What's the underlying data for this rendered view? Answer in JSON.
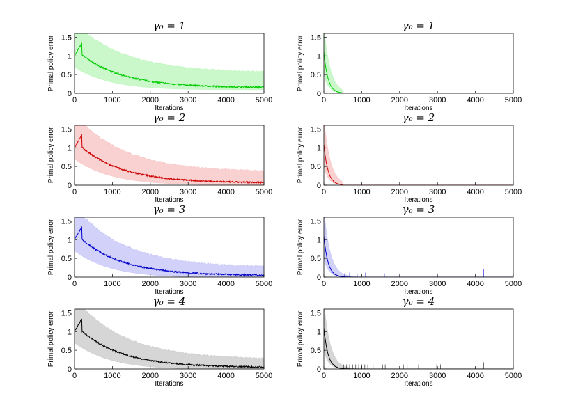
{
  "chart_data": [
    {
      "type": "area",
      "panel": "left-1",
      "title": "γ₀ = 1",
      "xlabel": "Iterations",
      "ylabel": "Primal policy error",
      "xlim": [
        0,
        5000
      ],
      "ylim": [
        0,
        1.6
      ],
      "xticks": [
        "0",
        "1000",
        "2000",
        "3000",
        "4000",
        "5000"
      ],
      "yticks": [
        "0",
        "0.5",
        "1",
        "1.5"
      ],
      "color": "#00cc00",
      "band_color": "#b8f5b8",
      "decay": "slow",
      "tail_mean": 0.15,
      "tail_upper": 0.55,
      "cutoff": null,
      "spikes": []
    },
    {
      "type": "area",
      "panel": "right-1",
      "title": "γ₀ = 1",
      "xlabel": "Iterations",
      "ylabel": "Primal policy error",
      "xlim": [
        0,
        5000
      ],
      "ylim": [
        0,
        1.6
      ],
      "xticks": [
        "0",
        "1000",
        "2000",
        "3000",
        "4000",
        "5000"
      ],
      "yticks": [
        "0",
        "0.5",
        "1",
        "1.5"
      ],
      "color": "#00cc00",
      "band_color": "#b8f5b8",
      "decay": "fast",
      "tail_mean": 0,
      "tail_upper": 0,
      "cutoff": 480,
      "spikes": []
    },
    {
      "type": "area",
      "panel": "left-2",
      "title": "γ₀ = 2",
      "xlabel": "Iterations",
      "ylabel": "Primal policy error",
      "xlim": [
        0,
        5000
      ],
      "ylim": [
        0,
        1.6
      ],
      "xticks": [
        "0",
        "1000",
        "2000",
        "3000",
        "4000",
        "5000"
      ],
      "yticks": [
        "0",
        "0.5",
        "1",
        "1.5"
      ],
      "color": "#cc0000",
      "band_color": "#f7c2c2",
      "decay": "slow",
      "tail_mean": 0.06,
      "tail_upper": 0.35,
      "cutoff": null,
      "spikes": []
    },
    {
      "type": "area",
      "panel": "right-2",
      "title": "γ₀ = 2",
      "xlabel": "Iterations",
      "ylabel": "Primal policy error",
      "xlim": [
        0,
        5000
      ],
      "ylim": [
        0,
        1.6
      ],
      "xticks": [
        "0",
        "1000",
        "2000",
        "3000",
        "4000",
        "5000"
      ],
      "yticks": [
        "0",
        "0.5",
        "1",
        "1.5"
      ],
      "color": "#cc0000",
      "band_color": "#f7c2c2",
      "decay": "fast",
      "tail_mean": 0,
      "tail_upper": 0,
      "cutoff": 480,
      "spikes": []
    },
    {
      "type": "area",
      "panel": "left-3",
      "title": "γ₀ = 3",
      "xlabel": "Iterations",
      "ylabel": "Primal policy error",
      "xlim": [
        0,
        5000
      ],
      "ylim": [
        0,
        1.6
      ],
      "xticks": [
        "0",
        "1000",
        "2000",
        "3000",
        "4000",
        "5000"
      ],
      "yticks": [
        "0",
        "0.5",
        "1",
        "1.5"
      ],
      "color": "#0000cc",
      "band_color": "#c2c2f7",
      "decay": "slow",
      "tail_mean": 0.04,
      "tail_upper": 0.25,
      "cutoff": null,
      "spikes": []
    },
    {
      "type": "area",
      "panel": "right-3",
      "title": "γ₀ = 3",
      "xlabel": "Iterations",
      "ylabel": "Primal policy error",
      "xlim": [
        0,
        5000
      ],
      "ylim": [
        0,
        1.6
      ],
      "xticks": [
        "0",
        "1000",
        "2000",
        "3000",
        "4000",
        "5000"
      ],
      "yticks": [
        "0",
        "0.5",
        "1",
        "1.5"
      ],
      "color": "#0000cc",
      "band_color": "#c2c2f7",
      "decay": "fast",
      "tail_mean": 0,
      "tail_upper": 0,
      "cutoff": null,
      "spikes": [
        [
          550,
          0.1
        ],
        [
          680,
          0.12
        ],
        [
          880,
          0.1
        ],
        [
          1100,
          0.12
        ],
        [
          1600,
          0.1
        ],
        [
          4220,
          0.22
        ]
      ]
    },
    {
      "type": "area",
      "panel": "left-4",
      "title": "γ₀ = 4",
      "xlabel": "Iterations",
      "ylabel": "Primal policy error",
      "xlim": [
        0,
        5000
      ],
      "ylim": [
        0,
        1.6
      ],
      "xticks": [
        "0",
        "1000",
        "2000",
        "3000",
        "4000",
        "5000"
      ],
      "yticks": [
        "0",
        "0.5",
        "1",
        "1.5"
      ],
      "color": "#000000",
      "band_color": "#c8c8c8",
      "decay": "slow",
      "tail_mean": 0.04,
      "tail_upper": 0.25,
      "cutoff": null,
      "spikes": []
    },
    {
      "type": "area",
      "panel": "right-4",
      "title": "γ₀ = 4",
      "xlabel": "Iterations",
      "ylabel": "Primal policy error",
      "xlim": [
        0,
        5000
      ],
      "ylim": [
        0,
        1.6
      ],
      "xticks": [
        "0",
        "1000",
        "2000",
        "3000",
        "4000",
        "5000"
      ],
      "yticks": [
        "0",
        "0.5",
        "1",
        "1.5"
      ],
      "color": "#000000",
      "band_color": "#c8c8c8",
      "decay": "fast",
      "tail_mean": 0,
      "tail_upper": 0,
      "cutoff": null,
      "spikes": [
        [
          520,
          0.12
        ],
        [
          600,
          0.12
        ],
        [
          680,
          0.12
        ],
        [
          760,
          0.12
        ],
        [
          840,
          0.12
        ],
        [
          920,
          0.12
        ],
        [
          1000,
          0.12
        ],
        [
          1080,
          0.12
        ],
        [
          1160,
          0.12
        ],
        [
          1300,
          0.12
        ],
        [
          1550,
          0.12
        ],
        [
          1620,
          0.12
        ],
        [
          2100,
          0.12
        ],
        [
          2200,
          0.12
        ],
        [
          2500,
          0.12
        ],
        [
          2980,
          0.12
        ],
        [
          3040,
          0.12
        ],
        [
          3080,
          0.12
        ],
        [
          4220,
          0.18
        ]
      ]
    }
  ]
}
